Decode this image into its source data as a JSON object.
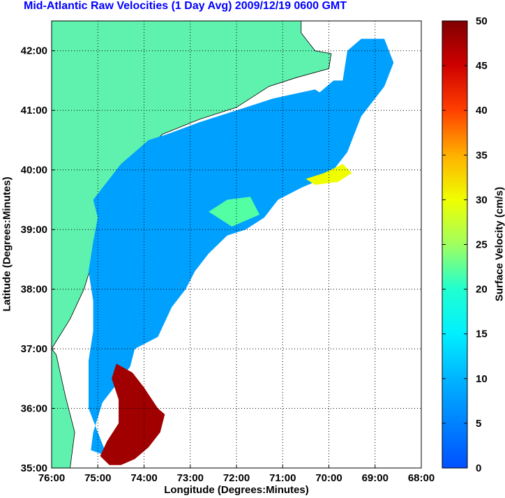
{
  "chart_data": {
    "type": "heatmap",
    "title": "Mid-Atlantic Raw Velocities (1 Day Avg) 2009/12/19 0600 GMT",
    "xlabel": "Longitude (Degrees:Minutes)",
    "ylabel": "Latitude (Degrees:Minutes)",
    "colorbar_label": "Surface Velocity (cm/s)",
    "x_ticks": [
      {
        "value": -76,
        "label": "76:00"
      },
      {
        "value": -75,
        "label": "75:00"
      },
      {
        "value": -74,
        "label": "74:00"
      },
      {
        "value": -73,
        "label": "73:00"
      },
      {
        "value": -72,
        "label": "72:00"
      },
      {
        "value": -71,
        "label": "71:00"
      },
      {
        "value": -70,
        "label": "70:00"
      },
      {
        "value": -69,
        "label": "69:00"
      },
      {
        "value": -68,
        "label": "68:00"
      }
    ],
    "y_ticks": [
      {
        "value": 35,
        "label": "35:00"
      },
      {
        "value": 36,
        "label": "36:00"
      },
      {
        "value": 37,
        "label": "37:00"
      },
      {
        "value": 38,
        "label": "38:00"
      },
      {
        "value": 39,
        "label": "39:00"
      },
      {
        "value": 40,
        "label": "40:00"
      },
      {
        "value": 41,
        "label": "41:00"
      },
      {
        "value": 42,
        "label": "42:00"
      }
    ],
    "xlim": [
      -76,
      -68
    ],
    "ylim": [
      35,
      42.5
    ],
    "colorbar": {
      "range": [
        0,
        50
      ],
      "ticks": [
        "0",
        "5",
        "10",
        "15",
        "20",
        "25",
        "30",
        "35",
        "40",
        "45",
        "50"
      ],
      "colormap": "jet"
    },
    "grid": true,
    "land_color": "#5ff2ae",
    "regions": [
      {
        "name": "main",
        "velocity": 8,
        "poly": [
          [
            -75.1,
            39.5
          ],
          [
            -74.5,
            40.1
          ],
          [
            -73.9,
            40.5
          ],
          [
            -73.5,
            40.6
          ],
          [
            -72.8,
            40.8
          ],
          [
            -72,
            41.0
          ],
          [
            -71.2,
            41.2
          ],
          [
            -70.6,
            41.3
          ],
          [
            -70.3,
            41.35
          ],
          [
            -70.2,
            41.3
          ],
          [
            -69.9,
            41.5
          ],
          [
            -69.7,
            41.5
          ],
          [
            -69.6,
            42.0
          ],
          [
            -69.3,
            42.2
          ],
          [
            -68.8,
            42.2
          ],
          [
            -68.6,
            41.8
          ],
          [
            -68.8,
            41.4
          ],
          [
            -69.3,
            40.9
          ],
          [
            -69.6,
            40.3
          ],
          [
            -70.0,
            39.9
          ],
          [
            -70.6,
            39.7
          ],
          [
            -71.1,
            39.5
          ],
          [
            -71.4,
            39.2
          ],
          [
            -71.8,
            39.0
          ],
          [
            -72.2,
            38.9
          ],
          [
            -72.6,
            38.6
          ],
          [
            -72.9,
            38.3
          ],
          [
            -73.1,
            38.0
          ],
          [
            -73.4,
            37.7
          ],
          [
            -73.7,
            37.2
          ],
          [
            -74.2,
            37.0
          ],
          [
            -74.3,
            36.7
          ],
          [
            -74.6,
            36.4
          ],
          [
            -74.9,
            36.1
          ],
          [
            -75.1,
            35.6
          ],
          [
            -75.15,
            35.3
          ],
          [
            -74.8,
            35.2
          ],
          [
            -75.2,
            36.0
          ],
          [
            -75.2,
            36.8
          ],
          [
            -75.1,
            37.3
          ],
          [
            -75.1,
            37.8
          ],
          [
            -75.2,
            38.3
          ],
          [
            -75.1,
            38.8
          ],
          [
            -75.0,
            39.2
          ]
        ]
      },
      {
        "name": "gulfstream",
        "velocity": 48,
        "poly": [
          [
            -74.6,
            36.75
          ],
          [
            -74.25,
            36.6
          ],
          [
            -74.0,
            36.35
          ],
          [
            -73.7,
            36.0
          ],
          [
            -73.55,
            35.9
          ],
          [
            -73.65,
            35.6
          ],
          [
            -73.9,
            35.35
          ],
          [
            -74.2,
            35.15
          ],
          [
            -74.5,
            35.05
          ],
          [
            -74.75,
            35.05
          ],
          [
            -74.95,
            35.2
          ],
          [
            -74.8,
            35.45
          ],
          [
            -74.55,
            35.75
          ],
          [
            -74.55,
            36.15
          ],
          [
            -74.7,
            36.5
          ]
        ]
      },
      {
        "name": "shelf-edge-jet",
        "velocity": 30,
        "poly": [
          [
            -70.5,
            39.85
          ],
          [
            -70.1,
            39.95
          ],
          [
            -69.7,
            40.1
          ],
          [
            -69.5,
            39.95
          ],
          [
            -69.8,
            39.8
          ],
          [
            -70.3,
            39.75
          ]
        ]
      },
      {
        "name": "shelf-edge-yellow",
        "velocity": 22,
        "poly": [
          [
            -72.6,
            39.3
          ],
          [
            -72.2,
            39.5
          ],
          [
            -71.7,
            39.55
          ],
          [
            -71.5,
            39.25
          ],
          [
            -72.1,
            39.05
          ]
        ]
      }
    ]
  }
}
